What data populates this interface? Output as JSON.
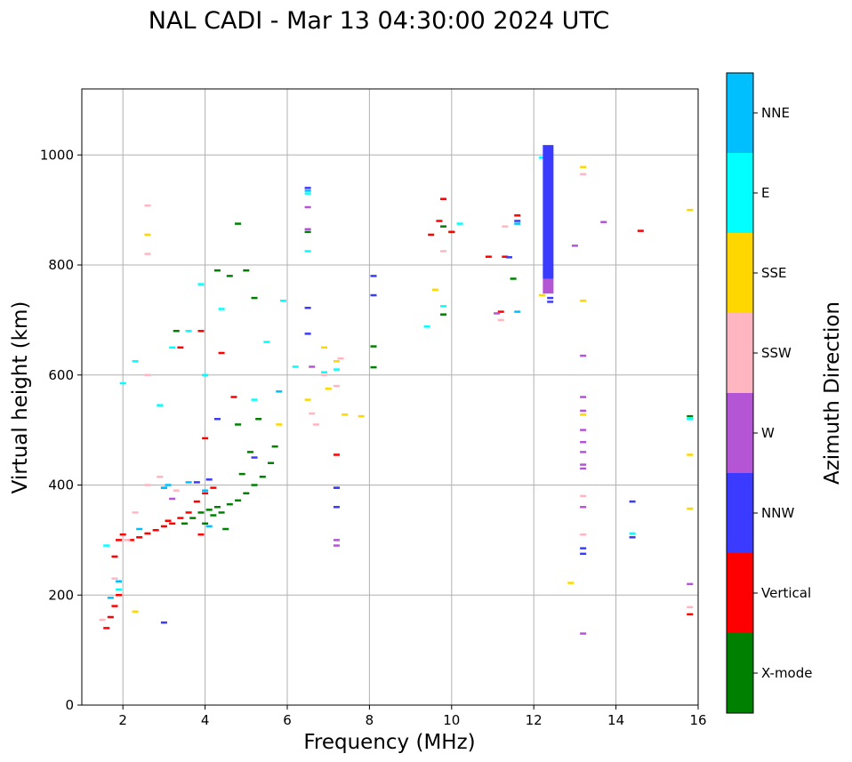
{
  "chart_data": {
    "type": "scatter",
    "title": "NAL CADI - Mar 13 04:30:00 2024 UTC",
    "xlabel": "Frequency (MHz)",
    "ylabel": "Virtual height (km)",
    "xlim": [
      1,
      16
    ],
    "ylim": [
      0,
      1120
    ],
    "xticks": [
      "2",
      "4",
      "6",
      "8",
      "10",
      "12",
      "14",
      "16"
    ],
    "yticks": [
      "0",
      "200",
      "400",
      "600",
      "800",
      "1000"
    ],
    "grid": true,
    "colorbar": {
      "label": "Azimuth Direction",
      "categories": [
        {
          "name": "X-mode",
          "color": "#008000"
        },
        {
          "name": "Vertical",
          "color": "#ff0000"
        },
        {
          "name": "NNW",
          "color": "#3b3bff"
        },
        {
          "name": "W",
          "color": "#b455d6"
        },
        {
          "name": "SSW",
          "color": "#ffb6c1"
        },
        {
          "name": "SSE",
          "color": "#ffd700"
        },
        {
          "name": "E",
          "color": "#00ffff"
        },
        {
          "name": "NNE",
          "color": "#00bfff"
        }
      ]
    },
    "series": [
      {
        "name": "X-mode",
        "points": [
          [
            3.5,
            330
          ],
          [
            3.7,
            340
          ],
          [
            3.9,
            350
          ],
          [
            4.1,
            355
          ],
          [
            4.3,
            360
          ],
          [
            4.6,
            365
          ],
          [
            4.8,
            372
          ],
          [
            5.0,
            385
          ],
          [
            5.2,
            400
          ],
          [
            5.4,
            415
          ],
          [
            5.6,
            440
          ],
          [
            5.7,
            470
          ],
          [
            4.0,
            330
          ],
          [
            4.2,
            345
          ],
          [
            4.4,
            350
          ],
          [
            4.9,
            420
          ],
          [
            5.1,
            460
          ],
          [
            4.5,
            320
          ],
          [
            4.8,
            510
          ],
          [
            5.3,
            520
          ],
          [
            6.5,
            860
          ],
          [
            8.1,
            652
          ],
          [
            8.1,
            614
          ],
          [
            9.8,
            870
          ],
          [
            9.8,
            710
          ],
          [
            10.0,
            860
          ],
          [
            11.5,
            775
          ],
          [
            15.8,
            525
          ],
          [
            4.3,
            790
          ],
          [
            4.6,
            780
          ],
          [
            5.2,
            740
          ],
          [
            3.3,
            680
          ],
          [
            4.8,
            875
          ],
          [
            12.4,
            995
          ],
          [
            5.0,
            790
          ]
        ]
      },
      {
        "name": "Vertical",
        "points": [
          [
            1.6,
            140
          ],
          [
            1.7,
            160
          ],
          [
            1.8,
            180
          ],
          [
            1.9,
            200
          ],
          [
            1.8,
            270
          ],
          [
            1.9,
            300
          ],
          [
            2.0,
            310
          ],
          [
            2.2,
            300
          ],
          [
            2.4,
            305
          ],
          [
            2.6,
            312
          ],
          [
            2.8,
            318
          ],
          [
            3.0,
            325
          ],
          [
            3.2,
            330
          ],
          [
            3.4,
            340
          ],
          [
            3.6,
            350
          ],
          [
            3.8,
            370
          ],
          [
            4.0,
            385
          ],
          [
            4.2,
            395
          ],
          [
            3.9,
            310
          ],
          [
            3.1,
            335
          ],
          [
            3.4,
            650
          ],
          [
            4.0,
            485
          ],
          [
            4.7,
            560
          ],
          [
            7.2,
            455
          ],
          [
            7.2,
            395
          ],
          [
            9.5,
            855
          ],
          [
            9.7,
            880
          ],
          [
            10.0,
            860
          ],
          [
            10.9,
            815
          ],
          [
            11.3,
            815
          ],
          [
            11.6,
            890
          ],
          [
            11.2,
            715
          ],
          [
            14.6,
            862
          ],
          [
            15.8,
            165
          ],
          [
            9.8,
            920
          ],
          [
            3.9,
            680
          ],
          [
            4.4,
            640
          ]
        ]
      },
      {
        "name": "NNW",
        "points": [
          [
            3.0,
            150
          ],
          [
            8.1,
            780
          ],
          [
            8.1,
            745
          ],
          [
            6.5,
            722
          ],
          [
            6.5,
            675
          ],
          [
            6.5,
            940
          ],
          [
            7.2,
            395
          ],
          [
            7.2,
            360
          ],
          [
            13.2,
            275
          ],
          [
            13.2,
            285
          ],
          [
            14.4,
            370
          ],
          [
            14.4,
            305
          ],
          [
            3.0,
            395
          ],
          [
            3.8,
            405
          ],
          [
            4.1,
            410
          ],
          [
            11.6,
            880
          ],
          [
            12.4,
            740
          ],
          [
            12.4,
            733
          ],
          [
            11.4,
            814
          ],
          [
            4.3,
            520
          ],
          [
            5.2,
            450
          ]
        ]
      },
      {
        "name": "W",
        "points": [
          [
            7.2,
            300
          ],
          [
            7.2,
            290
          ],
          [
            13.2,
            635
          ],
          [
            13.2,
            560
          ],
          [
            13.2,
            535
          ],
          [
            13.2,
            500
          ],
          [
            13.2,
            478
          ],
          [
            13.2,
            460
          ],
          [
            13.2,
            437
          ],
          [
            13.2,
            430
          ],
          [
            13.2,
            360
          ],
          [
            13.2,
            130
          ],
          [
            13.0,
            835
          ],
          [
            13.7,
            878
          ],
          [
            15.8,
            220
          ],
          [
            6.5,
            865
          ],
          [
            11.1,
            712
          ],
          [
            12.4,
            770
          ],
          [
            6.6,
            615
          ],
          [
            6.5,
            905
          ],
          [
            3.2,
            375
          ]
        ]
      },
      {
        "name": "SSW",
        "points": [
          [
            1.5,
            155
          ],
          [
            1.8,
            230
          ],
          [
            2.1,
            300
          ],
          [
            2.3,
            350
          ],
          [
            2.6,
            400
          ],
          [
            2.9,
            415
          ],
          [
            3.3,
            390
          ],
          [
            2.6,
            908
          ],
          [
            2.6,
            820
          ],
          [
            2.6,
            600
          ],
          [
            6.6,
            530
          ],
          [
            6.7,
            510
          ],
          [
            6.9,
            600
          ],
          [
            7.2,
            580
          ],
          [
            7.3,
            630
          ],
          [
            13.2,
            380
          ],
          [
            13.2,
            310
          ],
          [
            13.2,
            965
          ],
          [
            15.8,
            178
          ],
          [
            11.2,
            700
          ],
          [
            9.8,
            825
          ],
          [
            11.3,
            870
          ]
        ]
      },
      {
        "name": "SSE",
        "points": [
          [
            2.3,
            170
          ],
          [
            2.6,
            855
          ],
          [
            6.5,
            555
          ],
          [
            6.9,
            650
          ],
          [
            7.0,
            575
          ],
          [
            7.2,
            625
          ],
          [
            7.4,
            528
          ],
          [
            7.8,
            525
          ],
          [
            13.2,
            978
          ],
          [
            13.2,
            735
          ],
          [
            13.2,
            528
          ],
          [
            12.9,
            222
          ],
          [
            15.8,
            900
          ],
          [
            15.8,
            455
          ],
          [
            15.8,
            357
          ],
          [
            9.6,
            755
          ],
          [
            12.2,
            745
          ],
          [
            5.8,
            510
          ]
        ]
      },
      {
        "name": "E",
        "points": [
          [
            1.6,
            290
          ],
          [
            1.9,
            210
          ],
          [
            2.0,
            585
          ],
          [
            2.3,
            625
          ],
          [
            2.9,
            545
          ],
          [
            3.2,
            650
          ],
          [
            3.6,
            680
          ],
          [
            3.9,
            765
          ],
          [
            4.4,
            720
          ],
          [
            5.5,
            660
          ],
          [
            5.9,
            735
          ],
          [
            6.2,
            615
          ],
          [
            6.5,
            825
          ],
          [
            6.5,
            930
          ],
          [
            6.9,
            605
          ],
          [
            7.2,
            610
          ],
          [
            9.4,
            688
          ],
          [
            9.8,
            725
          ],
          [
            10.2,
            875
          ],
          [
            14.4,
            312
          ],
          [
            15.8,
            520
          ],
          [
            12.2,
            995
          ],
          [
            4.0,
            600
          ],
          [
            5.2,
            555
          ]
        ]
      },
      {
        "name": "NNE",
        "points": [
          [
            1.7,
            195
          ],
          [
            1.9,
            225
          ],
          [
            2.4,
            320
          ],
          [
            3.1,
            400
          ],
          [
            3.6,
            405
          ],
          [
            4.0,
            390
          ],
          [
            4.1,
            325
          ],
          [
            6.5,
            935
          ],
          [
            11.6,
            715
          ],
          [
            11.6,
            875
          ],
          [
            3.0,
            395
          ],
          [
            5.8,
            570
          ]
        ]
      }
    ],
    "bars": [
      {
        "series": "NNW",
        "x": 12.35,
        "y0": 775,
        "y1": 1018
      },
      {
        "series": "W",
        "x": 12.35,
        "y0": 748,
        "y1": 775
      }
    ]
  }
}
